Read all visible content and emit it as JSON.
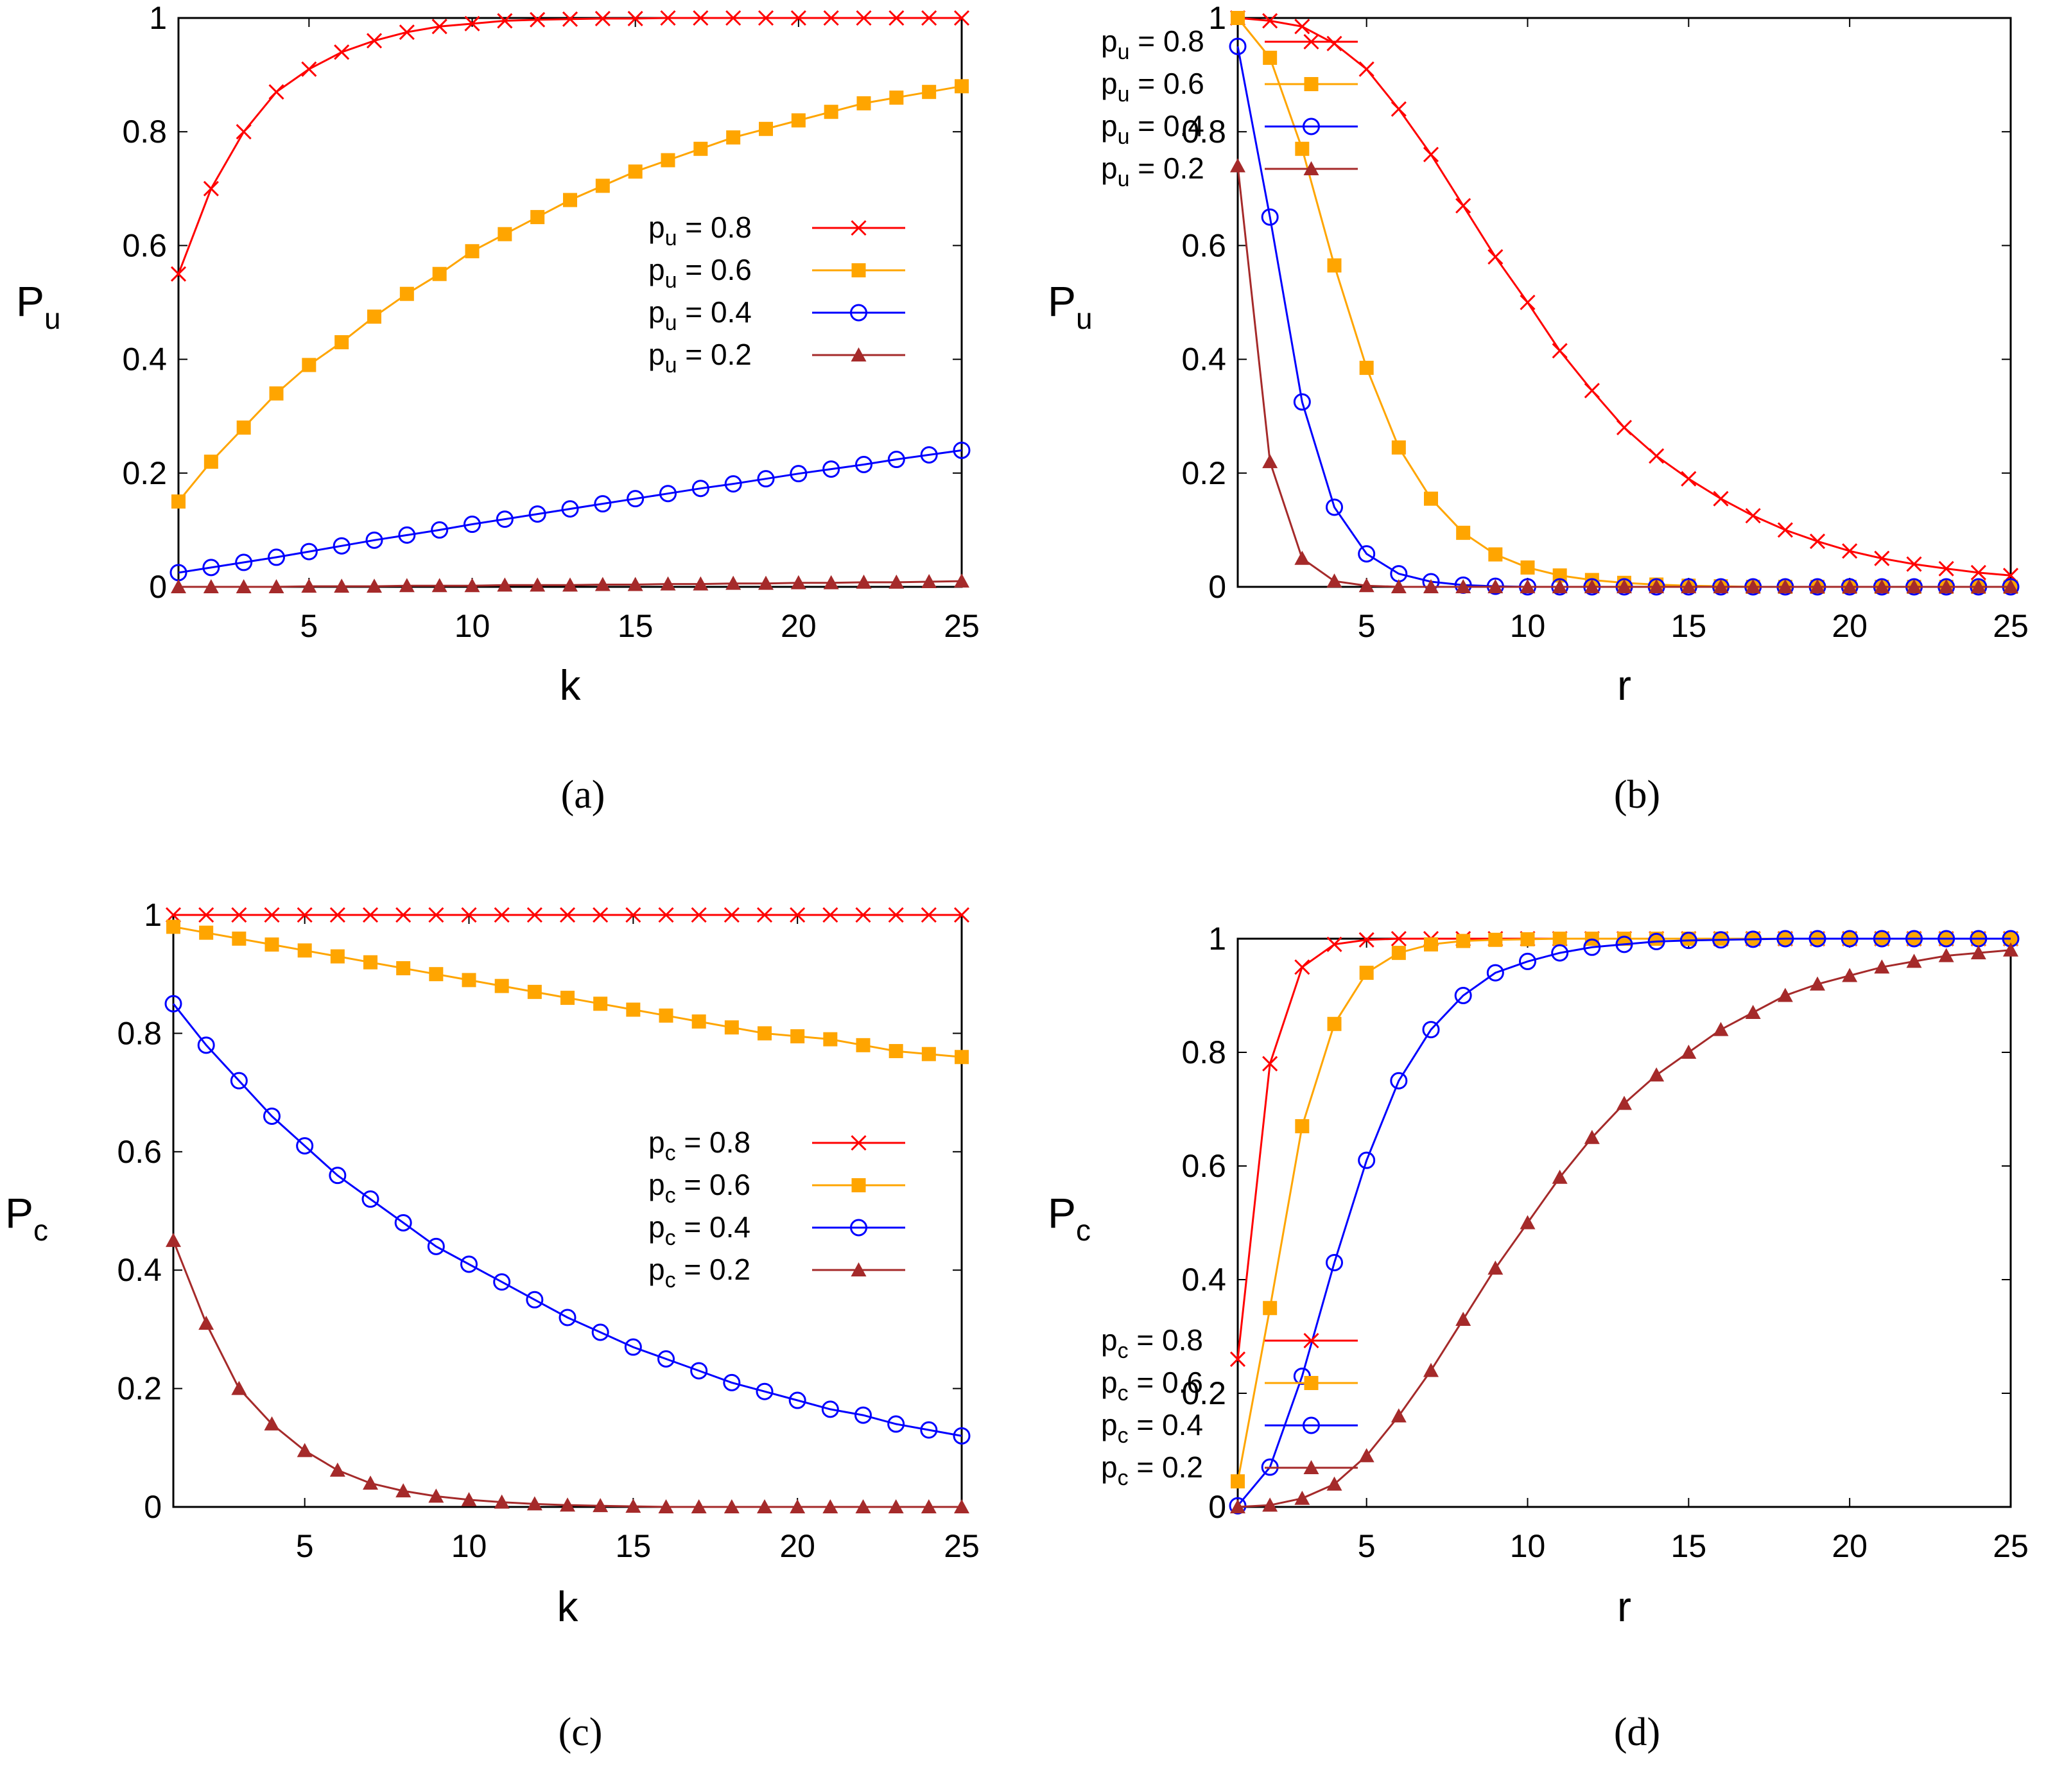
{
  "figure_panels": [
    "(a)",
    "(b)",
    "(c)",
    "(d)"
  ],
  "colors": {
    "0.8": "#ff0000",
    "0.6": "#ffa500",
    "0.4": "#0000ff",
    "0.2": "#a52a2a"
  },
  "chart_data": [
    {
      "type": "line",
      "panel": "(a)",
      "xlabel": "k",
      "ylabel": "P",
      "ylabel_sub": "u",
      "xlim": [
        1,
        25
      ],
      "ylim": [
        0,
        1
      ],
      "xticks": [
        5,
        10,
        15,
        20,
        25
      ],
      "yticks": [
        0,
        0.2,
        0.4,
        0.6,
        0.8,
        1
      ],
      "ytick_labels": [
        "0",
        "0.2",
        "0.4",
        "0.6",
        "0.8",
        "1"
      ],
      "legend_position": "center-right",
      "x": [
        1,
        2,
        3,
        4,
        5,
        6,
        7,
        8,
        9,
        10,
        11,
        12,
        13,
        14,
        15,
        16,
        17,
        18,
        19,
        20,
        21,
        22,
        23,
        24,
        25
      ],
      "series": [
        {
          "name": "p",
          "sub": "u",
          "value_text": " = 0.8",
          "key": "0.8",
          "marker": "x",
          "values": [
            0.55,
            0.7,
            0.8,
            0.87,
            0.91,
            0.94,
            0.96,
            0.975,
            0.985,
            0.99,
            0.995,
            0.997,
            0.998,
            0.999,
            0.999,
            1,
            1,
            1,
            1,
            1,
            1,
            1,
            1,
            1,
            1
          ]
        },
        {
          "name": "p",
          "sub": "u",
          "value_text": " = 0.6",
          "key": "0.6",
          "marker": "square",
          "values": [
            0.15,
            0.22,
            0.28,
            0.34,
            0.39,
            0.43,
            0.475,
            0.515,
            0.55,
            0.59,
            0.62,
            0.65,
            0.68,
            0.705,
            0.73,
            0.75,
            0.77,
            0.79,
            0.805,
            0.82,
            0.835,
            0.85,
            0.86,
            0.87,
            0.88
          ]
        },
        {
          "name": "p",
          "sub": "u",
          "value_text": " = 0.4",
          "key": "0.4",
          "marker": "circle",
          "values": [
            0.025,
            0.034,
            0.043,
            0.052,
            0.062,
            0.072,
            0.082,
            0.091,
            0.1,
            0.11,
            0.119,
            0.128,
            0.137,
            0.146,
            0.155,
            0.164,
            0.173,
            0.181,
            0.19,
            0.199,
            0.207,
            0.215,
            0.224,
            0.232,
            0.24
          ]
        },
        {
          "name": "p",
          "sub": "u",
          "value_text": " = 0.2",
          "key": "0.2",
          "marker": "triangle",
          "values": [
            0.0,
            0.0,
            0.0,
            0.0,
            0.001,
            0.001,
            0.001,
            0.002,
            0.002,
            0.002,
            0.003,
            0.003,
            0.003,
            0.004,
            0.004,
            0.005,
            0.005,
            0.006,
            0.006,
            0.007,
            0.007,
            0.008,
            0.008,
            0.009,
            0.01
          ]
        }
      ]
    },
    {
      "type": "line",
      "panel": "(b)",
      "xlabel": "r",
      "ylabel": "P",
      "ylabel_sub": "u",
      "xlim": [
        1,
        25
      ],
      "ylim": [
        0,
        1
      ],
      "xticks": [
        5,
        10,
        15,
        20,
        25
      ],
      "yticks": [
        0,
        0.2,
        0.4,
        0.6,
        0.8,
        1
      ],
      "ytick_labels": [
        "0",
        "0.2",
        "0.4",
        "0.6",
        "0.8",
        "1"
      ],
      "legend_position": "top-right",
      "x": [
        1,
        2,
        3,
        4,
        5,
        6,
        7,
        8,
        9,
        10,
        11,
        12,
        13,
        14,
        15,
        16,
        17,
        18,
        19,
        20,
        21,
        22,
        23,
        24,
        25
      ],
      "series": [
        {
          "name": "p",
          "sub": "u",
          "value_text": " = 0.8",
          "key": "0.8",
          "marker": "x",
          "values": [
            1.0,
            0.995,
            0.985,
            0.955,
            0.91,
            0.84,
            0.76,
            0.67,
            0.58,
            0.5,
            0.415,
            0.345,
            0.28,
            0.23,
            0.19,
            0.155,
            0.125,
            0.1,
            0.08,
            0.063,
            0.05,
            0.04,
            0.032,
            0.025,
            0.02
          ]
        },
        {
          "name": "p",
          "sub": "u",
          "value_text": " = 0.6",
          "key": "0.6",
          "marker": "square",
          "values": [
            1.0,
            0.93,
            0.77,
            0.565,
            0.385,
            0.245,
            0.155,
            0.095,
            0.057,
            0.034,
            0.02,
            0.012,
            0.007,
            0.004,
            0.002,
            0.001,
            0,
            0,
            0,
            0,
            0,
            0,
            0,
            0,
            0
          ]
        },
        {
          "name": "p",
          "sub": "u",
          "value_text": " = 0.4",
          "key": "0.4",
          "marker": "circle",
          "values": [
            0.95,
            0.65,
            0.325,
            0.14,
            0.058,
            0.023,
            0.009,
            0.003,
            0.001,
            0,
            0,
            0,
            0,
            0,
            0,
            0,
            0,
            0,
            0,
            0,
            0,
            0,
            0,
            0,
            0
          ]
        },
        {
          "name": "p",
          "sub": "u",
          "value_text": " = 0.2",
          "key": "0.2",
          "marker": "triangle",
          "values": [
            0.74,
            0.22,
            0.05,
            0.01,
            0.002,
            0,
            0,
            0,
            0,
            0,
            0,
            0,
            0,
            0,
            0,
            0,
            0,
            0,
            0,
            0,
            0,
            0,
            0,
            0,
            0
          ]
        }
      ]
    },
    {
      "type": "line",
      "panel": "(c)",
      "xlabel": "k",
      "ylabel": "P",
      "ylabel_sub": "c",
      "xlim": [
        1,
        25
      ],
      "ylim": [
        0,
        1
      ],
      "xticks": [
        5,
        10,
        15,
        20,
        25
      ],
      "yticks": [
        0,
        0.2,
        0.4,
        0.6,
        0.8,
        1
      ],
      "ytick_labels": [
        "0",
        "0.2",
        "0.4",
        "0.6",
        "0.8",
        "1"
      ],
      "legend_position": "center-right",
      "x": [
        1,
        2,
        3,
        4,
        5,
        6,
        7,
        8,
        9,
        10,
        11,
        12,
        13,
        14,
        15,
        16,
        17,
        18,
        19,
        20,
        21,
        22,
        23,
        24,
        25
      ],
      "series": [
        {
          "name": "p",
          "sub": "c",
          "value_text": " = 0.8",
          "key": "0.8",
          "marker": "x",
          "values": [
            1.0,
            1.0,
            1.0,
            1.0,
            1.0,
            1.0,
            1.0,
            1.0,
            1.0,
            1.0,
            1.0,
            1.0,
            1.0,
            1.0,
            1.0,
            1.0,
            1.0,
            1.0,
            1.0,
            1.0,
            1.0,
            1.0,
            1.0,
            1.0,
            1.0
          ]
        },
        {
          "name": "p",
          "sub": "c",
          "value_text": " = 0.6",
          "key": "0.6",
          "marker": "square",
          "values": [
            0.98,
            0.97,
            0.96,
            0.95,
            0.94,
            0.93,
            0.92,
            0.91,
            0.9,
            0.89,
            0.88,
            0.87,
            0.86,
            0.85,
            0.84,
            0.83,
            0.82,
            0.81,
            0.8,
            0.795,
            0.79,
            0.78,
            0.77,
            0.765,
            0.76
          ]
        },
        {
          "name": "p",
          "sub": "c",
          "value_text": " = 0.4",
          "key": "0.4",
          "marker": "circle",
          "values": [
            0.85,
            0.78,
            0.72,
            0.66,
            0.61,
            0.56,
            0.52,
            0.48,
            0.44,
            0.41,
            0.38,
            0.35,
            0.32,
            0.295,
            0.27,
            0.25,
            0.23,
            0.21,
            0.195,
            0.18,
            0.165,
            0.155,
            0.14,
            0.13,
            0.12
          ]
        },
        {
          "name": "p",
          "sub": "c",
          "value_text": " = 0.2",
          "key": "0.2",
          "marker": "triangle",
          "values": [
            0.45,
            0.31,
            0.2,
            0.14,
            0.095,
            0.062,
            0.04,
            0.027,
            0.018,
            0.012,
            0.008,
            0.005,
            0.003,
            0.002,
            0.001,
            0,
            0,
            0,
            0,
            0,
            0,
            0,
            0,
            0,
            0
          ]
        }
      ]
    },
    {
      "type": "line",
      "panel": "(d)",
      "xlabel": "r",
      "ylabel": "P",
      "ylabel_sub": "c",
      "xlim": [
        1,
        25
      ],
      "ylim": [
        0,
        1
      ],
      "xticks": [
        5,
        10,
        15,
        20,
        25
      ],
      "yticks": [
        0,
        0.2,
        0.4,
        0.6,
        0.8,
        1
      ],
      "ytick_labels": [
        "0",
        "0.2",
        "0.4",
        "0.6",
        "0.8",
        "1"
      ],
      "legend_position": "bottom-right",
      "x": [
        1,
        2,
        3,
        4,
        5,
        6,
        7,
        8,
        9,
        10,
        11,
        12,
        13,
        14,
        15,
        16,
        17,
        18,
        19,
        20,
        21,
        22,
        23,
        24,
        25
      ],
      "series": [
        {
          "name": "p",
          "sub": "c",
          "value_text": " = 0.8",
          "key": "0.8",
          "marker": "x",
          "values": [
            0.26,
            0.78,
            0.95,
            0.99,
            0.998,
            1,
            1,
            1,
            1,
            1,
            1,
            1,
            1,
            1,
            1,
            1,
            1,
            1,
            1,
            1,
            1,
            1,
            1,
            1,
            1
          ]
        },
        {
          "name": "p",
          "sub": "c",
          "value_text": " = 0.6",
          "key": "0.6",
          "marker": "square",
          "values": [
            0.045,
            0.35,
            0.67,
            0.85,
            0.94,
            0.975,
            0.99,
            0.996,
            0.998,
            0.999,
            1,
            1,
            1,
            1,
            1,
            1,
            1,
            1,
            1,
            1,
            1,
            1,
            1,
            1,
            1
          ]
        },
        {
          "name": "p",
          "sub": "c",
          "value_text": " = 0.4",
          "key": "0.4",
          "marker": "circle",
          "values": [
            0.002,
            0.07,
            0.23,
            0.43,
            0.61,
            0.75,
            0.84,
            0.9,
            0.94,
            0.96,
            0.975,
            0.985,
            0.99,
            0.995,
            0.997,
            0.998,
            0.999,
            1,
            1,
            1,
            1,
            1,
            1,
            1,
            1
          ]
        },
        {
          "name": "p",
          "sub": "c",
          "value_text": " = 0.2",
          "key": "0.2",
          "marker": "triangle",
          "values": [
            0.0,
            0.003,
            0.015,
            0.04,
            0.09,
            0.16,
            0.24,
            0.33,
            0.42,
            0.5,
            0.58,
            0.65,
            0.71,
            0.76,
            0.8,
            0.84,
            0.87,
            0.9,
            0.92,
            0.935,
            0.95,
            0.96,
            0.97,
            0.975,
            0.98
          ]
        }
      ]
    }
  ]
}
